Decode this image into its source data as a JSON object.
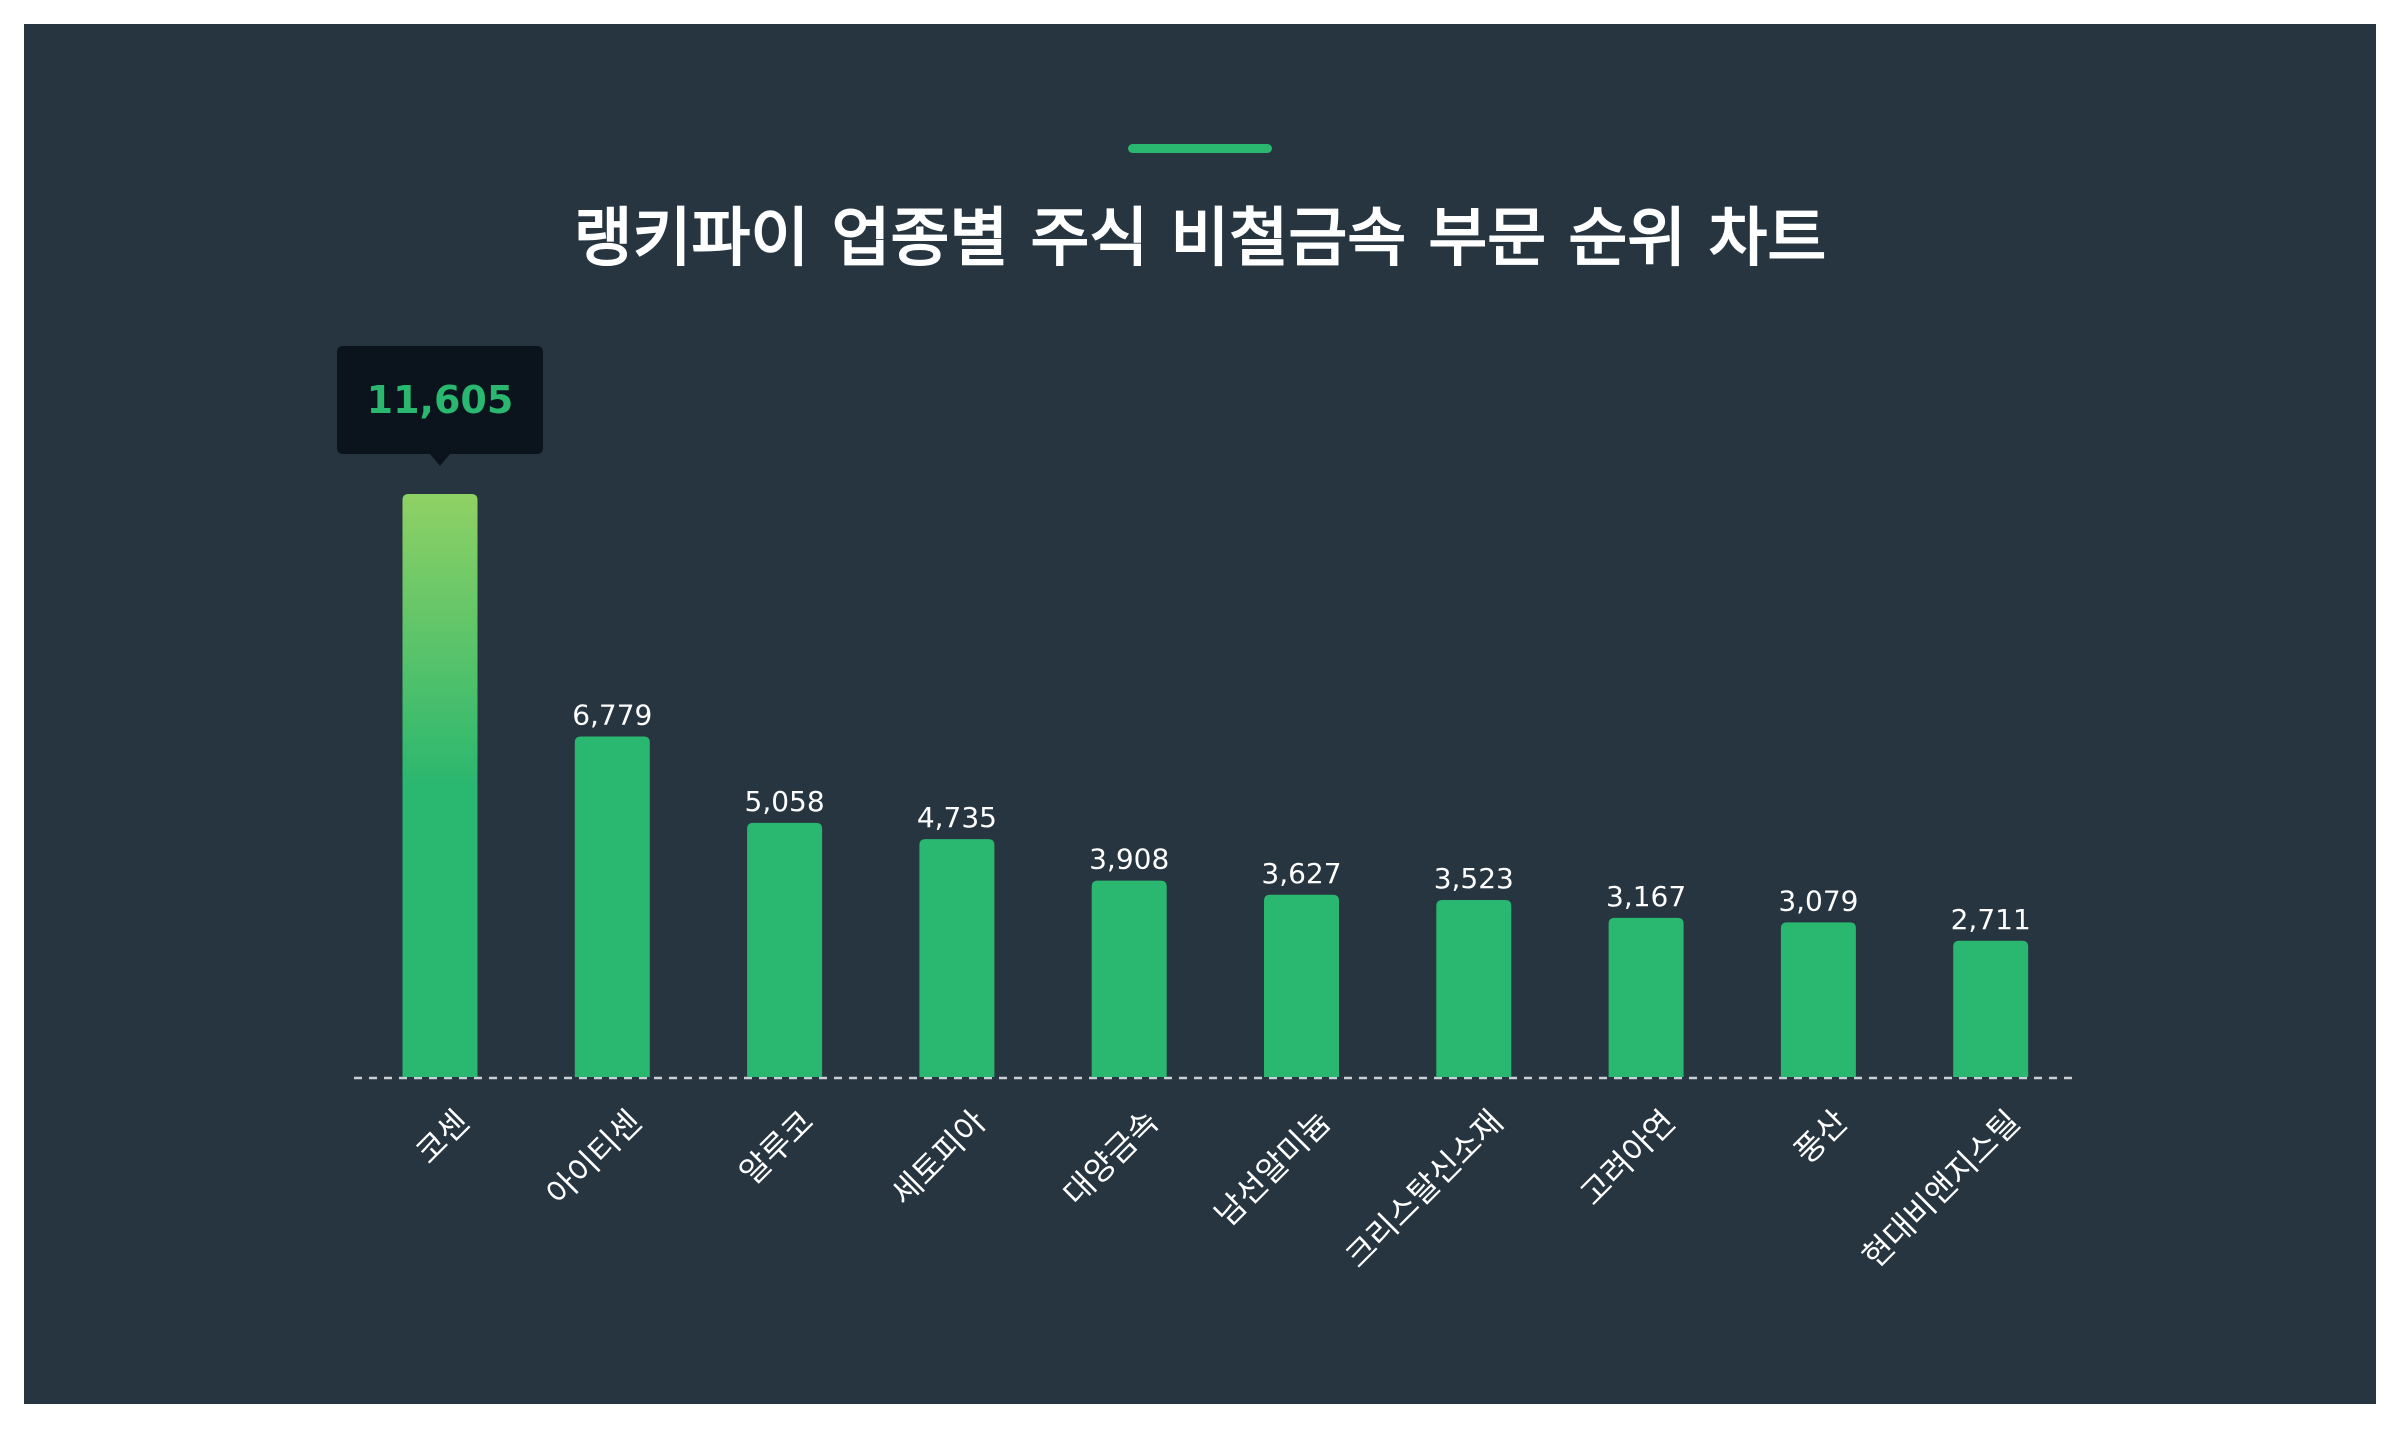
{
  "title": "랭키파이 업종별 주식 비철금속 부문 순위 차트",
  "colors": {
    "background": "#263540",
    "bar": "#2ab76f",
    "top_bar_gradient_start": "#8fd164",
    "accent": "#2ab76f",
    "tooltip_bg": "#0b141c",
    "text": "#ffffff"
  },
  "tooltip": {
    "value_label": "11,605"
  },
  "chart_data": {
    "type": "bar",
    "title": "랭키파이 업종별 주식 비철금속 부문 순위 차트",
    "xlabel": "",
    "ylabel": "",
    "grid": false,
    "legend": "none",
    "categories": [
      "코센",
      "아이티센",
      "알루코",
      "세토피아",
      "대양금속",
      "남선알미늄",
      "크리스탈신소재",
      "고려아연",
      "풍산",
      "현대비앤지스틸"
    ],
    "values": [
      11605,
      6779,
      5058,
      4735,
      3908,
      3627,
      3523,
      3167,
      3079,
      2711
    ],
    "labels": [
      "11,605",
      "6,779",
      "5,058",
      "4,735",
      "3,908",
      "3,627",
      "3,523",
      "3,167",
      "3,079",
      "2,711"
    ],
    "ylim": [
      0,
      11605
    ]
  }
}
